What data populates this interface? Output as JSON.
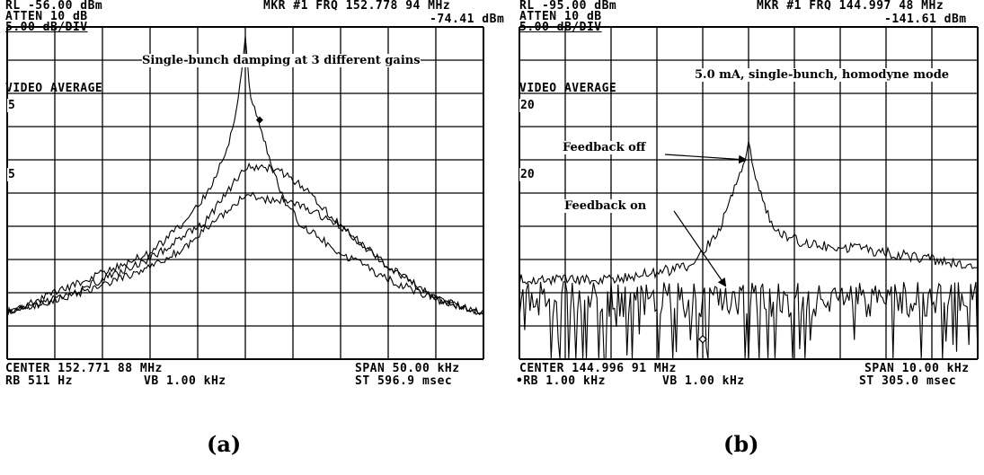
{
  "chart_data": [
    {
      "type": "line",
      "panel": "a",
      "caption": "(a)",
      "header": {
        "ref_level": "RL -56.00 dBm",
        "marker": "MKR #1 FRQ 152.778 94 MHz",
        "atten": "ATTEN 10 dB",
        "marker_level": "-74.41 dBm",
        "scale": "5.00 dB/DIV",
        "mode": "VIDEO AVERAGE",
        "ref_tags": [
          "5",
          "5"
        ]
      },
      "annotation": "Single-bunch damping at 3 different gains",
      "footer": {
        "center": "CENTER 152.771 88 MHz",
        "span": "SPAN 50.00 kHz",
        "rbw": "RB 511 Hz",
        "vbw": "VB 1.00 kHz",
        "sweep": "ST 596.9 msec"
      },
      "x_unit": "kHz offset from center",
      "x_range": [
        -25,
        25
      ],
      "y_unit": "dB relative to reference level",
      "y_range": [
        -50,
        0
      ],
      "grid": "10x10",
      "series": [
        {
          "x": [
            -25,
            -20,
            -15,
            -10,
            -6,
            -4,
            -2,
            -1,
            0,
            0.5,
            1,
            1.5,
            2,
            3,
            4,
            6,
            10,
            15,
            20,
            25
          ],
          "values": [
            -43,
            -40,
            -37,
            -34,
            -29,
            -25,
            -19,
            -13,
            -2,
            -10,
            -12,
            -15,
            -17,
            -22,
            -26,
            -30,
            -34,
            -38,
            -41,
            -43
          ]
        },
        {
          "x": [
            -25,
            -20,
            -15,
            -10,
            -6,
            -4,
            -2,
            0,
            2,
            4,
            6,
            10,
            15,
            20,
            25
          ],
          "values": [
            -43,
            -41,
            -38,
            -35,
            -31,
            -29,
            -25,
            -21,
            -21,
            -22,
            -24,
            -30,
            -36,
            -41,
            -43
          ]
        },
        {
          "x": [
            -25,
            -20,
            -15,
            -10,
            -6,
            -4,
            -2,
            0,
            2,
            4,
            6,
            10,
            15,
            20,
            25
          ],
          "values": [
            -43,
            -41,
            -39,
            -36,
            -33,
            -30,
            -28,
            -25,
            -26,
            -26,
            -27,
            -30,
            -36,
            -41,
            -43
          ]
        }
      ]
    },
    {
      "type": "line",
      "panel": "b",
      "caption": "(b)",
      "header": {
        "ref_level": "RL -95.00 dBm",
        "marker": "MKR #1 FRQ 144.997 48 MHz",
        "atten": "ATTEN 10 dB",
        "marker_level": "-141.61 dBm",
        "scale": "5.00 dB/DIV",
        "mode": "VIDEO AVERAGE",
        "ref_tags": [
          "20",
          "20"
        ]
      },
      "annotation": "5.0 mA, single-bunch, homodyne mode",
      "labels": [
        "Feedback off",
        "Feedback on"
      ],
      "footer": {
        "center": "CENTER 144.996 91 MHz",
        "span": "SPAN 10.00 kHz",
        "rbw": "•RB 1.00 kHz",
        "vbw": "VB 1.00 kHz",
        "sweep": "ST 305.0 msec"
      },
      "x_unit": "kHz offset from center",
      "x_range": [
        -5,
        5
      ],
      "y_unit": "dB relative to reference level",
      "y_range": [
        -50,
        0
      ],
      "grid": "10x10",
      "series": [
        {
          "x": [
            -5,
            -3,
            -1.2,
            -0.6,
            -0.3,
            0,
            0.3,
            0.6,
            1,
            1.5,
            2,
            3,
            4,
            5
          ],
          "values": [
            -38,
            -38,
            -36,
            -30,
            -24,
            -18,
            -26,
            -31,
            -32,
            -33,
            -33,
            -34,
            -35,
            -36
          ]
        },
        {
          "x": [
            -5,
            -3,
            -1,
            0,
            1,
            3,
            5
          ],
          "values": [
            -41,
            -41,
            -41,
            -41,
            -41,
            -41,
            -41
          ]
        }
      ]
    }
  ]
}
